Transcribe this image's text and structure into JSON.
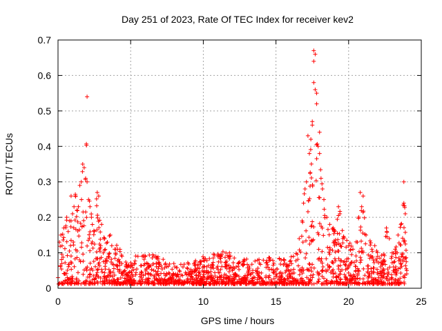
{
  "chart_data": {
    "type": "scatter",
    "title": "Day 251 of 2023, Rate Of TEC Index for receiver kev2",
    "xlabel": "GPS time / hours",
    "ylabel": "ROTI / TECUs",
    "xlim": [
      0,
      25
    ],
    "ylim": [
      0,
      0.7
    ],
    "xticks": [
      0,
      5,
      10,
      15,
      20,
      25
    ],
    "yticks": [
      0,
      0.1,
      0.2,
      0.3,
      0.4,
      0.5,
      0.6,
      0.7
    ],
    "xtick_labels": [
      "0",
      "5",
      "10",
      "15",
      "20",
      "25"
    ],
    "ytick_labels": [
      "0",
      "0.1",
      "0.2",
      "0.3",
      "0.4",
      "0.5",
      "0.6",
      "0.7"
    ],
    "grid": true,
    "marker": "+",
    "color": "#ff0000",
    "points": [
      [
        0.0,
        0.03
      ],
      [
        0.1,
        0.13
      ],
      [
        0.2,
        0.15
      ],
      [
        0.4,
        0.17
      ],
      [
        0.6,
        0.2
      ],
      [
        0.7,
        0.16
      ],
      [
        0.8,
        0.19
      ],
      [
        0.9,
        0.19
      ],
      [
        0.9,
        0.26
      ],
      [
        1.0,
        0.21
      ],
      [
        1.1,
        0.23
      ],
      [
        1.2,
        0.26
      ],
      [
        1.3,
        0.22
      ],
      [
        1.4,
        0.23
      ],
      [
        1.5,
        0.29
      ],
      [
        1.6,
        0.3
      ],
      [
        1.7,
        0.35
      ],
      [
        1.8,
        0.34
      ],
      [
        1.9,
        0.31
      ],
      [
        2.0,
        0.54
      ],
      [
        2.0,
        0.3
      ],
      [
        2.1,
        0.25
      ],
      [
        2.2,
        0.23
      ],
      [
        2.3,
        0.2
      ],
      [
        2.5,
        0.16
      ],
      [
        2.7,
        0.27
      ],
      [
        2.8,
        0.26
      ],
      [
        3.0,
        0.18
      ],
      [
        3.2,
        0.14
      ],
      [
        3.4,
        0.13
      ],
      [
        3.6,
        0.15
      ],
      [
        3.7,
        0.12
      ],
      [
        3.9,
        0.11
      ],
      [
        4.1,
        0.11
      ],
      [
        4.4,
        0.09
      ],
      [
        4.7,
        0.06
      ],
      [
        5.5,
        0.09
      ],
      [
        5.8,
        0.09
      ],
      [
        6.0,
        0.09
      ],
      [
        7.4,
        0.07
      ],
      [
        8.6,
        0.06
      ],
      [
        11.8,
        0.1
      ],
      [
        11.8,
        0.09
      ],
      [
        12.4,
        0.07
      ],
      [
        14.6,
        0.08
      ],
      [
        15.6,
        0.07
      ],
      [
        16.2,
        0.09
      ],
      [
        16.6,
        0.14
      ],
      [
        16.8,
        0.19
      ],
      [
        16.9,
        0.24
      ],
      [
        17.0,
        0.28
      ],
      [
        17.1,
        0.3
      ],
      [
        17.2,
        0.43
      ],
      [
        17.3,
        0.38
      ],
      [
        17.4,
        0.42
      ],
      [
        17.5,
        0.47
      ],
      [
        17.5,
        0.46
      ],
      [
        17.6,
        0.58
      ],
      [
        17.6,
        0.64
      ],
      [
        17.6,
        0.67
      ],
      [
        17.7,
        0.66
      ],
      [
        17.7,
        0.56
      ],
      [
        17.8,
        0.55
      ],
      [
        17.8,
        0.52
      ],
      [
        17.9,
        0.4
      ],
      [
        18.0,
        0.44
      ],
      [
        18.0,
        0.38
      ],
      [
        18.1,
        0.31
      ],
      [
        18.2,
        0.28
      ],
      [
        18.3,
        0.25
      ],
      [
        18.5,
        0.2
      ],
      [
        18.7,
        0.18
      ],
      [
        19.0,
        0.16
      ],
      [
        19.3,
        0.23
      ],
      [
        19.4,
        0.21
      ],
      [
        19.6,
        0.14
      ],
      [
        20.0,
        0.12
      ],
      [
        20.3,
        0.11
      ],
      [
        20.6,
        0.13
      ],
      [
        20.8,
        0.27
      ],
      [
        20.9,
        0.23
      ],
      [
        21.0,
        0.26
      ],
      [
        21.2,
        0.15
      ],
      [
        21.6,
        0.11
      ],
      [
        21.8,
        0.12
      ],
      [
        22.0,
        0.09
      ],
      [
        22.4,
        0.08
      ],
      [
        22.6,
        0.17
      ],
      [
        22.8,
        0.14
      ],
      [
        23.0,
        0.1
      ],
      [
        23.2,
        0.11
      ],
      [
        23.4,
        0.15
      ],
      [
        23.6,
        0.18
      ],
      [
        23.8,
        0.3
      ],
      [
        23.8,
        0.24
      ],
      [
        23.9,
        0.21
      ],
      [
        24.0,
        0.05
      ]
    ]
  }
}
